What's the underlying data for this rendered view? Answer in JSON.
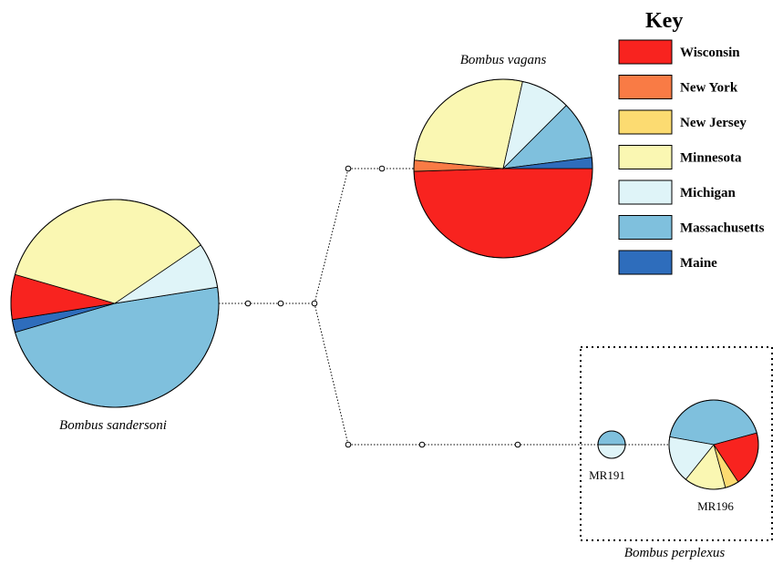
{
  "key": {
    "title": "Key",
    "items": [
      {
        "id": "wisconsin",
        "label": "Wisconsin",
        "color": "#F8231F"
      },
      {
        "id": "new-york",
        "label": "New York",
        "color": "#F97B45"
      },
      {
        "id": "new-jersey",
        "label": "New Jersey",
        "color": "#FCDB71"
      },
      {
        "id": "minnesota",
        "label": "Minnesota",
        "color": "#FAF7B2"
      },
      {
        "id": "michigan",
        "label": "Michigan",
        "color": "#DFF4F8"
      },
      {
        "id": "massachusetts",
        "label": "Massachusetts",
        "color": "#7FC0DD"
      },
      {
        "id": "maine",
        "label": "Maine",
        "color": "#2E6DBC"
      }
    ]
  },
  "haplotypes": {
    "vagans": {
      "label": "Bombus vagans",
      "composition": [
        {
          "state": "wisconsin",
          "fraction": 0.495
        },
        {
          "state": "new-york",
          "fraction": 0.02
        },
        {
          "state": "minnesota",
          "fraction": 0.27
        },
        {
          "state": "michigan",
          "fraction": 0.09
        },
        {
          "state": "massachusetts",
          "fraction": 0.105
        },
        {
          "state": "maine",
          "fraction": 0.02
        }
      ]
    },
    "sandersoni": {
      "label": "Bombus sandersoni",
      "composition": [
        {
          "state": "massachusetts",
          "fraction": 0.48
        },
        {
          "state": "maine",
          "fraction": 0.02
        },
        {
          "state": "wisconsin",
          "fraction": 0.07
        },
        {
          "state": "minnesota",
          "fraction": 0.36
        },
        {
          "state": "michigan",
          "fraction": 0.07
        }
      ]
    },
    "mr191": {
      "label": "MR191",
      "composition": [
        {
          "state": "michigan",
          "fraction": 0.5
        },
        {
          "state": "massachusetts",
          "fraction": 0.5
        }
      ]
    },
    "mr196": {
      "label": "MR196",
      "composition": [
        {
          "state": "massachusetts",
          "fraction": 0.43
        },
        {
          "state": "wisconsin",
          "fraction": 0.2
        },
        {
          "state": "new-jersey",
          "fraction": 0.05
        },
        {
          "state": "minnesota",
          "fraction": 0.15
        },
        {
          "state": "michigan",
          "fraction": 0.17
        }
      ]
    }
  },
  "group": {
    "label": "Bombus perplexus"
  }
}
